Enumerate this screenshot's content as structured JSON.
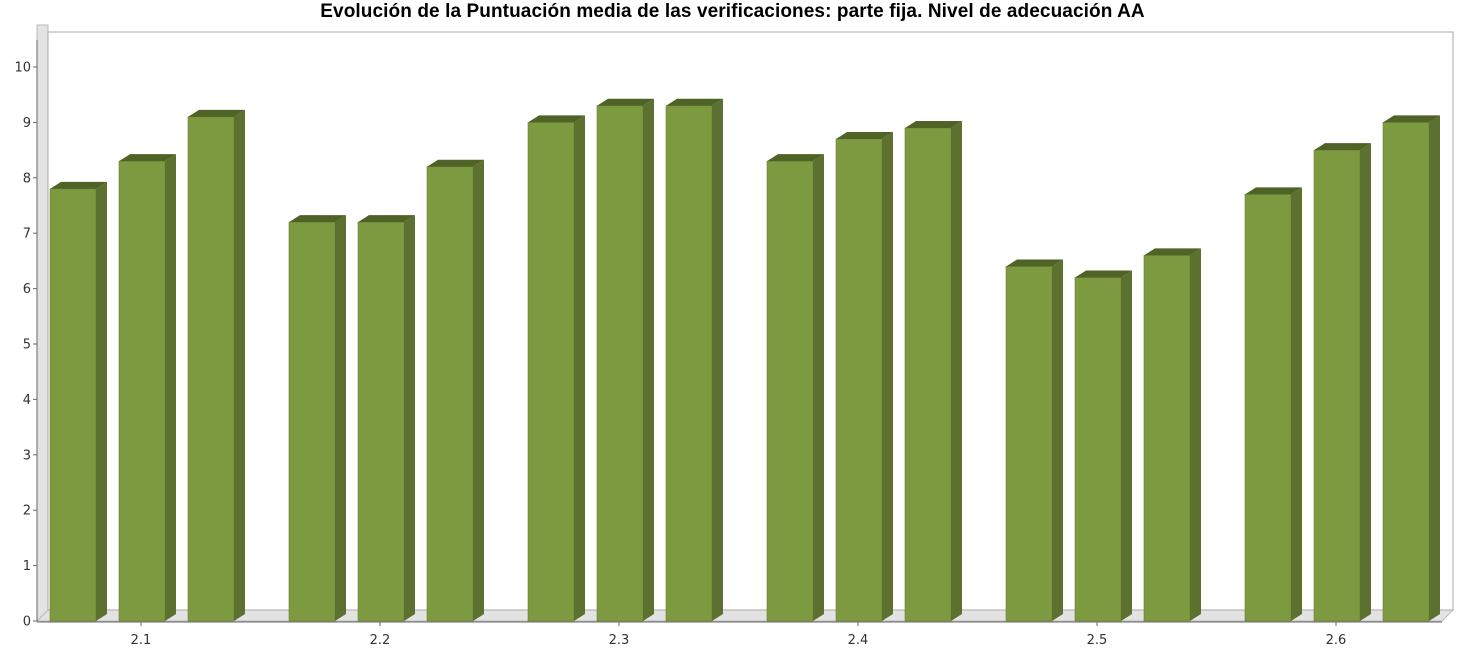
{
  "chart_data": {
    "type": "bar",
    "title": "Evolución de la Puntuación media de las verificaciones: parte fija. Nivel de adecuación AA",
    "xlabel": "",
    "ylabel": "",
    "categories": [
      "2.1",
      "2.2",
      "2.3",
      "2.4",
      "2.5",
      "2.6"
    ],
    "series": [
      {
        "values": [
          7.8,
          7.2,
          9.0,
          8.3,
          6.4,
          7.7
        ]
      },
      {
        "values": [
          8.3,
          7.2,
          9.3,
          8.7,
          6.2,
          8.5
        ]
      },
      {
        "values": [
          9.1,
          8.2,
          9.3,
          8.9,
          6.6,
          9.0
        ]
      }
    ],
    "ylim": [
      0,
      10
    ],
    "yticks": [
      "0",
      "1",
      "2",
      "3",
      "4",
      "5",
      "6",
      "7",
      "8",
      "9",
      "10"
    ],
    "grid": false,
    "legend": "none",
    "style": "3d",
    "colors": {
      "bar_front": "#7d9a40",
      "bar_side": "#5c7030",
      "bar_top": "#4e6325",
      "wall": "#e3e3e3",
      "axis": "#666666"
    }
  }
}
